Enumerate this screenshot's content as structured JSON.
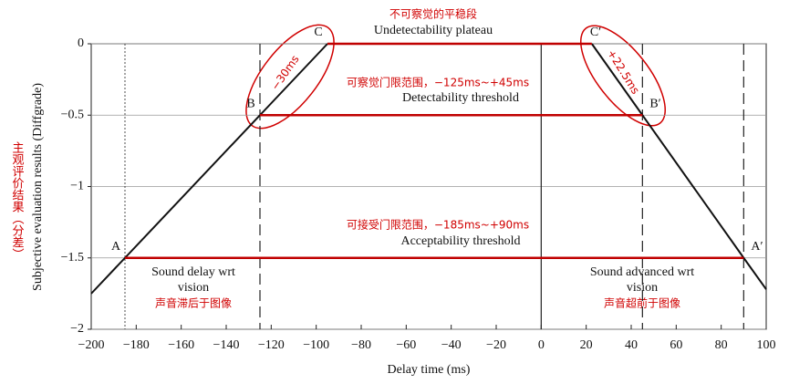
{
  "chart_data": {
    "type": "line",
    "xlabel": "Delay time (ms)",
    "ylabel": "Subjective evaluation results (Diffgrade)",
    "ylabel_zh": "主观评价结果（分差）",
    "xlim": [
      -200,
      100
    ],
    "ylim": [
      -2,
      0
    ],
    "xticks": [
      {
        "value": -200,
        "label": "−200"
      },
      {
        "value": -180,
        "label": "−180"
      },
      {
        "value": -160,
        "label": "−160"
      },
      {
        "value": -140,
        "label": "−140"
      },
      {
        "value": -120,
        "label": "−120"
      },
      {
        "value": -100,
        "label": "−100"
      },
      {
        "value": -80,
        "label": "−80"
      },
      {
        "value": -60,
        "label": "−60"
      },
      {
        "value": -40,
        "label": "−40"
      },
      {
        "value": -20,
        "label": "−20"
      },
      0,
      20,
      40,
      60,
      80,
      100
    ],
    "yticks": [
      0,
      {
        "value": -0.5,
        "label": "−0.5"
      },
      {
        "value": -1,
        "label": "−1"
      },
      {
        "value": -1.5,
        "label": "−1.5"
      },
      {
        "value": -2,
        "label": "−2"
      }
    ],
    "grid_y": true,
    "series": [
      {
        "color": "#111111",
        "x": [
          -200,
          -185,
          -125,
          -95
        ],
        "values": [
          -1.75,
          -1.5,
          -0.5,
          0
        ]
      },
      {
        "color": "#111111",
        "x": [
          22.5,
          45,
          90,
          100
        ],
        "values": [
          0,
          -0.5,
          -1.5,
          -1.72
        ]
      },
      {
        "color": "#c00000",
        "x": [
          -95,
          22.5
        ],
        "values": [
          0,
          0
        ]
      },
      {
        "color": "#c00000",
        "x": [
          -125,
          45
        ],
        "values": [
          -0.5,
          -0.5
        ]
      },
      {
        "color": "#c00000",
        "x": [
          -185,
          90
        ],
        "values": [
          -1.5,
          -1.5
        ]
      }
    ],
    "vlines": [
      {
        "x": -185,
        "style": "dotted"
      },
      {
        "x": -125,
        "style": "dashed"
      },
      {
        "x": 0,
        "style": "solid"
      },
      {
        "x": 45,
        "style": "dashed"
      },
      {
        "x": 90,
        "style": "dashed"
      }
    ],
    "points": [
      {
        "label": "A",
        "x": -185,
        "y": -1.5
      },
      {
        "label": "B",
        "x": -125,
        "y": -0.5
      },
      {
        "label": "C",
        "x": -95,
        "y": 0
      },
      {
        "label": "C′",
        "x": 22.5,
        "y": 0
      },
      {
        "label": "B′",
        "x": 45,
        "y": -0.5
      },
      {
        "label": "A′",
        "x": 90,
        "y": -1.5
      }
    ],
    "annotations": {
      "plateau_zh": "不可察觉的平稳段",
      "plateau": "Undetectability plateau",
      "detect_zh": "可察觉门限范围，−125ms~+45ms",
      "detect": "Detectability threshold",
      "accept_zh": "可接受门限范围，−185ms~+90ms",
      "accept": "Acceptability threshold",
      "delay_1": "Sound delay wrt",
      "delay_2": "vision",
      "delay_zh": "声音滞后于图像",
      "advance_1": "Sound advanced wrt",
      "advance_2": "vision",
      "advance_zh": "声音超前于图像",
      "left_span": "−30ms",
      "right_span": "+22.5ms"
    }
  }
}
